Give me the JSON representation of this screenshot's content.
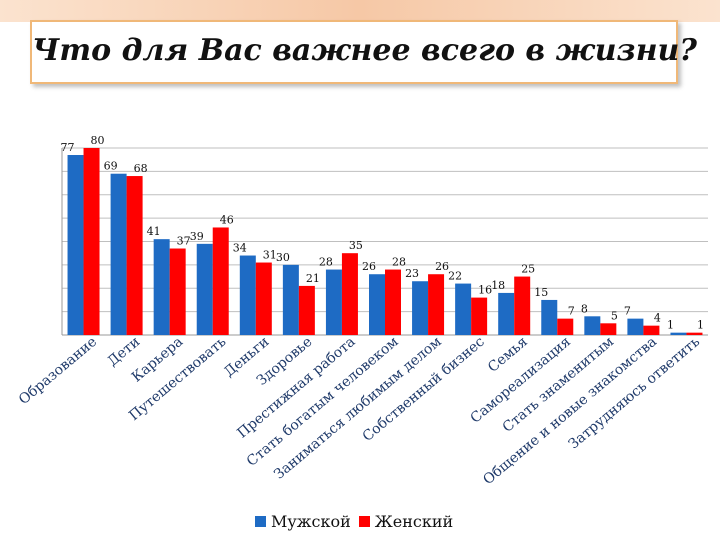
{
  "colors": {
    "male": "#1e6bc4",
    "female": "#ff0000",
    "grid": "#bfbfbf"
  },
  "chart_data": {
    "type": "bar",
    "title": "Что для Вас важнее всего в жизни?",
    "categories": [
      "Образование",
      "Дети",
      "Карьера",
      "Путешествовать",
      "Деньги",
      "Здоровье",
      "Престижная работа",
      "Стать богатым человеком",
      "Заниматься любимым делом",
      "Собственный бизнес",
      "Семья",
      "Самореализация",
      "Стать знаменитым",
      "Общение и новые знакомства",
      "Затрудняюсь ответить"
    ],
    "series": [
      {
        "name": "Мужской",
        "values": [
          77,
          69,
          41,
          39,
          34,
          30,
          28,
          26,
          23,
          22,
          18,
          15,
          8,
          7,
          1
        ]
      },
      {
        "name": "Женский",
        "values": [
          80,
          68,
          37,
          46,
          31,
          21,
          35,
          28,
          26,
          16,
          25,
          7,
          5,
          4,
          1
        ]
      }
    ],
    "ylim": [
      0,
      80
    ],
    "grid": true,
    "legend_position": "bottom"
  }
}
